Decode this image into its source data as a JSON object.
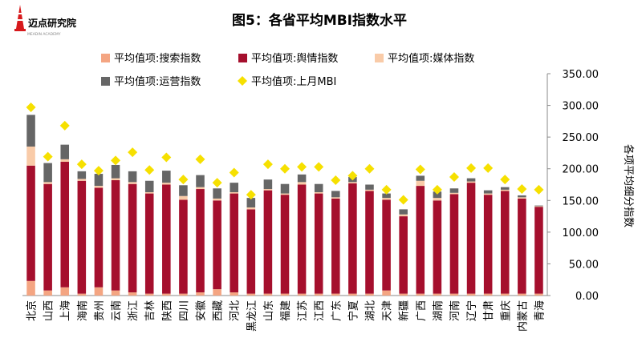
{
  "logo": {
    "name": "迈点研究院",
    "subtitle": "MEADIN ACADEMY"
  },
  "colors": {
    "search": "#F4A582",
    "sentiment": "#A50F2D",
    "media": "#F9CBA8",
    "operation": "#666666",
    "last_month": "#F6E000",
    "logo_red": "#D7191C"
  },
  "chart_data": {
    "type": "bar",
    "stacked": true,
    "title": "图5：各省平均MBI指数水平",
    "ylabel": "各项平均细分指数",
    "ylim": [
      0,
      350
    ],
    "yticks": [
      "0.00",
      "50.00",
      "100.00",
      "150.00",
      "200.00",
      "250.00",
      "300.00",
      "350.00"
    ],
    "y_axis_position": "right",
    "grid": false,
    "legend_position": "top-left",
    "categories": [
      "北京",
      "山西",
      "上海",
      "海南",
      "贵州",
      "云南",
      "浙江",
      "吉林",
      "陕西",
      "四川",
      "安徽",
      "西藏",
      "河北",
      "黑龙江",
      "山东",
      "福建",
      "江苏",
      "江西",
      "广东",
      "宁夏",
      "湖北",
      "天津",
      "新疆",
      "广西",
      "湖南",
      "河南",
      "辽宁",
      "甘肃",
      "重庆",
      "内蒙古",
      "青海"
    ],
    "series": [
      {
        "name": "平均值项:搜索指数",
        "key": "search",
        "values": [
          23,
          8,
          13,
          3,
          13,
          8,
          5,
          3,
          3,
          3,
          5,
          10,
          5,
          3,
          3,
          3,
          3,
          3,
          3,
          3,
          3,
          8,
          3,
          3,
          3,
          3,
          3,
          3,
          3,
          3,
          3
        ]
      },
      {
        "name": "平均值项:舆情指数",
        "key": "sentiment",
        "values": [
          182,
          168,
          198,
          178,
          157,
          174,
          171,
          158,
          172,
          148,
          163,
          140,
          156,
          133,
          163,
          156,
          172,
          158,
          150,
          174,
          162,
          143,
          122,
          170,
          147,
          157,
          175,
          156,
          162,
          150,
          137
        ]
      },
      {
        "name": "平均值项:媒体指数",
        "key": "media",
        "values": [
          30,
          3,
          4,
          3,
          3,
          3,
          3,
          2,
          3,
          6,
          3,
          3,
          2,
          3,
          2,
          2,
          4,
          2,
          2,
          2,
          2,
          3,
          3,
          8,
          4,
          2,
          2,
          2,
          2,
          2,
          1
        ]
      },
      {
        "name": "平均值项:运营指数",
        "key": "operation",
        "values": [
          50,
          30,
          23,
          12,
          19,
          21,
          17,
          18,
          19,
          17,
          19,
          16,
          15,
          15,
          15,
          15,
          12,
          13,
          10,
          8,
          8,
          7,
          8,
          8,
          10,
          7,
          5,
          5,
          4,
          3,
          1
        ]
      }
    ],
    "line_series": {
      "name": "平均值项:上月MBI",
      "key": "last_month",
      "marker": "diamond",
      "values": [
        297,
        219,
        268,
        207,
        197,
        213,
        226,
        198,
        218,
        183,
        215,
        178,
        194,
        159,
        207,
        200,
        203,
        203,
        182,
        189,
        200,
        167,
        151,
        199,
        167,
        187,
        201,
        201,
        183,
        168,
        167
      ]
    }
  }
}
